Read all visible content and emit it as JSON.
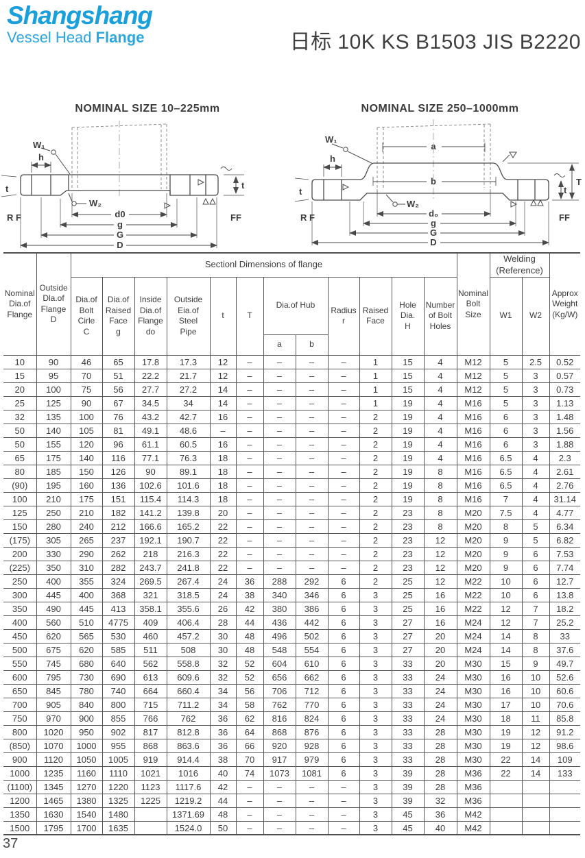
{
  "page": {
    "title": "日标 10K KS B1503 JIS B2220",
    "number": "37"
  },
  "logo": {
    "name": "Shangshang",
    "tagline_vessel_head": "Vessel Head",
    "tagline_flange": "Flange",
    "brand_color": "#189fdc"
  },
  "diagrams": {
    "left": {
      "title": "NOMINAL SIZE 10–225mm",
      "labels": {
        "w1": "W₁",
        "h": "h",
        "t_left": "t",
        "rf": "R F",
        "w2": "W₂",
        "d0": "d0",
        "g": "g",
        "G": "G",
        "D": "D",
        "t_right": "t",
        "ff": "FF"
      }
    },
    "right": {
      "title": "NOMINAL SIZE 250–1000mm",
      "labels": {
        "w1": "W₁",
        "h": "h",
        "a": "a",
        "b": "b",
        "t_left": "t",
        "rf": "R F",
        "w2": "W₂",
        "d0": "d₀",
        "g": "g",
        "G": "G",
        "D": "D",
        "t_right": "t",
        "T": "T",
        "ff": "FF"
      }
    }
  },
  "table": {
    "header": {
      "nominal_dia": "Nominal\nDia.of\nFlange",
      "outside_dia": "Outside\nDla.of\nFlange\nD",
      "section_dims": "Sectionl Dimensions of flange",
      "bolt_circle": "Dia.of\nBolt\nCirle\nC",
      "raised_face_g": "Dia.of\nRaised\nFace\ng",
      "inside_dia": "Inside\nDia.of\nFlange\ndo",
      "outside_pipe": "Outside\nEia.of\nSteel\nPipe",
      "t_label": "t",
      "T_label": "T",
      "hub": "Dia.of Hub",
      "hub_a": "a",
      "hub_b": "b",
      "radius": "Radius\nr",
      "raised_face": "Raised\nFace",
      "hole_dia": "Hole\nDia.\nH",
      "num_holes": "Number\nof Bolt\nHoles",
      "bolt_size": "Nominal\nBolt\nSize",
      "welding": "Welding\n(Reference)",
      "w1": "W1",
      "w2": "W2",
      "weight": "Approx\nWeight\n(Kg/W)"
    },
    "rows": [
      [
        "10",
        "90",
        "46",
        "65",
        "17.8",
        "17.3",
        "12",
        "–",
        "–",
        "–",
        "–",
        "1",
        "15",
        "4",
        "M12",
        "5",
        "2.5",
        "0.52"
      ],
      [
        "15",
        "95",
        "70",
        "51",
        "22.2",
        "21.7",
        "12",
        "–",
        "–",
        "–",
        "–",
        "1",
        "15",
        "4",
        "M12",
        "5",
        "3",
        "0.57"
      ],
      [
        "20",
        "100",
        "75",
        "56",
        "27.7",
        "27.2",
        "14",
        "–",
        "–",
        "–",
        "–",
        "1",
        "15",
        "4",
        "M12",
        "5",
        "3",
        "0.73"
      ],
      [
        "25",
        "125",
        "90",
        "67",
        "34.5",
        "34",
        "14",
        "–",
        "–",
        "–",
        "–",
        "1",
        "19",
        "4",
        "M16",
        "5",
        "3",
        "1.13"
      ],
      [
        "32",
        "135",
        "100",
        "76",
        "43.2",
        "42.7",
        "16",
        "–",
        "–",
        "–",
        "–",
        "2",
        "19",
        "4",
        "M16",
        "6",
        "3",
        "1.48"
      ],
      [
        "50",
        "140",
        "105",
        "81",
        "49.1",
        "48.6",
        "–",
        "–",
        "–",
        "–",
        "–",
        "2",
        "19",
        "4",
        "M16",
        "6",
        "3",
        "1.56"
      ],
      [
        "50",
        "155",
        "120",
        "96",
        "61.1",
        "60.5",
        "16",
        "–",
        "–",
        "–",
        "–",
        "2",
        "19",
        "4",
        "M16",
        "6",
        "3",
        "1.88"
      ],
      [
        "65",
        "175",
        "140",
        "116",
        "77.1",
        "76.3",
        "18",
        "–",
        "–",
        "–",
        "–",
        "2",
        "19",
        "4",
        "M16",
        "6.5",
        "4",
        "2.3"
      ],
      [
        "80",
        "185",
        "150",
        "126",
        "90",
        "89.1",
        "18",
        "–",
        "–",
        "–",
        "–",
        "2",
        "19",
        "8",
        "M16",
        "6.5",
        "4",
        "2.61"
      ],
      [
        "(90)",
        "195",
        "160",
        "136",
        "102.6",
        "101.6",
        "18",
        "–",
        "–",
        "–",
        "–",
        "2",
        "19",
        "8",
        "M16",
        "6.5",
        "4",
        "2.76"
      ],
      [
        "100",
        "210",
        "175",
        "151",
        "115.4",
        "114.3",
        "18",
        "–",
        "–",
        "–",
        "–",
        "2",
        "19",
        "8",
        "M16",
        "7",
        "4",
        "31.14"
      ],
      [
        "125",
        "250",
        "210",
        "182",
        "141.2",
        "139.8",
        "20",
        "–",
        "–",
        "–",
        "–",
        "2",
        "23",
        "8",
        "M20",
        "7.5",
        "4",
        "4.77"
      ],
      [
        "150",
        "280",
        "240",
        "212",
        "166.6",
        "165.2",
        "22",
        "–",
        "–",
        "–",
        "–",
        "2",
        "23",
        "8",
        "M20",
        "8",
        "5",
        "6.34"
      ],
      [
        "(175)",
        "305",
        "265",
        "237",
        "192.1",
        "190.7",
        "22",
        "–",
        "–",
        "–",
        "–",
        "2",
        "23",
        "12",
        "M20",
        "9",
        "5",
        "6.82"
      ],
      [
        "200",
        "330",
        "290",
        "262",
        "218",
        "216.3",
        "22",
        "–",
        "–",
        "–",
        "–",
        "2",
        "23",
        "12",
        "M20",
        "9",
        "6",
        "7.53"
      ],
      [
        "(225)",
        "350",
        "310",
        "282",
        "243.7",
        "241.8",
        "22",
        "–",
        "–",
        "–",
        "–",
        "2",
        "23",
        "12",
        "M20",
        "9",
        "6",
        "7.74"
      ],
      [
        "250",
        "400",
        "355",
        "324",
        "269.5",
        "267.4",
        "24",
        "36",
        "288",
        "292",
        "6",
        "2",
        "25",
        "12",
        "M22",
        "10",
        "6",
        "12.7"
      ],
      [
        "300",
        "445",
        "400",
        "368",
        "321",
        "318.5",
        "24",
        "38",
        "340",
        "346",
        "6",
        "3",
        "25",
        "16",
        "M22",
        "10",
        "6",
        "13.8"
      ],
      [
        "350",
        "490",
        "445",
        "413",
        "358.1",
        "355.6",
        "26",
        "42",
        "380",
        "386",
        "6",
        "3",
        "25",
        "16",
        "M22",
        "12",
        "7",
        "18.2"
      ],
      [
        "400",
        "560",
        "510",
        "4775",
        "409",
        "406.4",
        "28",
        "44",
        "436",
        "442",
        "6",
        "3",
        "27",
        "16",
        "M24",
        "12",
        "7",
        "25.2"
      ],
      [
        "450",
        "620",
        "565",
        "530",
        "460",
        "457.2",
        "30",
        "48",
        "496",
        "502",
        "6",
        "3",
        "27",
        "20",
        "M24",
        "14",
        "8",
        "33"
      ],
      [
        "500",
        "675",
        "620",
        "585",
        "511",
        "508",
        "30",
        "48",
        "548",
        "554",
        "6",
        "3",
        "27",
        "20",
        "M24",
        "14",
        "8",
        "37.6"
      ],
      [
        "550",
        "745",
        "680",
        "640",
        "562",
        "558.8",
        "32",
        "52",
        "604",
        "610",
        "6",
        "3",
        "33",
        "20",
        "M30",
        "15",
        "9",
        "49.7"
      ],
      [
        "600",
        "795",
        "730",
        "690",
        "613",
        "609.6",
        "32",
        "52",
        "656",
        "662",
        "6",
        "3",
        "33",
        "24",
        "M30",
        "16",
        "10",
        "52.6"
      ],
      [
        "650",
        "845",
        "780",
        "740",
        "664",
        "660.4",
        "34",
        "56",
        "706",
        "712",
        "6",
        "3",
        "33",
        "24",
        "M30",
        "16",
        "10",
        "60.6"
      ],
      [
        "700",
        "905",
        "840",
        "800",
        "715",
        "711.2",
        "34",
        "58",
        "762",
        "770",
        "6",
        "3",
        "33",
        "24",
        "M30",
        "17",
        "10",
        "70.6"
      ],
      [
        "750",
        "970",
        "900",
        "855",
        "766",
        "762",
        "36",
        "62",
        "816",
        "824",
        "6",
        "3",
        "33",
        "24",
        "M30",
        "18",
        "11",
        "85.8"
      ],
      [
        "800",
        "1020",
        "950",
        "902",
        "817",
        "812.8",
        "36",
        "64",
        "868",
        "876",
        "6",
        "3",
        "33",
        "28",
        "M30",
        "19",
        "12",
        "91.2"
      ],
      [
        "(850)",
        "1070",
        "1000",
        "955",
        "868",
        "863.6",
        "36",
        "66",
        "920",
        "928",
        "6",
        "3",
        "33",
        "28",
        "M30",
        "19",
        "12",
        "98.6"
      ],
      [
        "900",
        "1120",
        "1050",
        "1005",
        "919",
        "914.4",
        "38",
        "70",
        "917",
        "979",
        "6",
        "3",
        "33",
        "28",
        "M30",
        "22",
        "14",
        "109"
      ],
      [
        "1000",
        "1235",
        "1160",
        "1110",
        "1021",
        "1016",
        "40",
        "74",
        "1073",
        "1081",
        "6",
        "3",
        "39",
        "28",
        "M36",
        "22",
        "14",
        "133"
      ],
      [
        "(1100)",
        "1345",
        "1270",
        "1220",
        "1123",
        "1117.6",
        "42",
        "–",
        "–",
        "–",
        "–",
        "3",
        "39",
        "28",
        "M36",
        "",
        "",
        ""
      ],
      [
        "1200",
        "1465",
        "1380",
        "1325",
        "1225",
        "1219.2",
        "44",
        "–",
        "–",
        "–",
        "–",
        "3",
        "39",
        "32",
        "M36",
        "",
        "",
        ""
      ],
      [
        "1350",
        "1630",
        "1540",
        "1480",
        "",
        "1371.69",
        "48",
        "–",
        "–",
        "–",
        "–",
        "3",
        "45",
        "36",
        "M42",
        "",
        "",
        ""
      ],
      [
        "1500",
        "1795",
        "1700",
        "1635",
        "",
        "1524.0",
        "50",
        "–",
        "–",
        "–",
        "–",
        "3",
        "45",
        "40",
        "M42",
        "",
        "",
        ""
      ]
    ]
  }
}
